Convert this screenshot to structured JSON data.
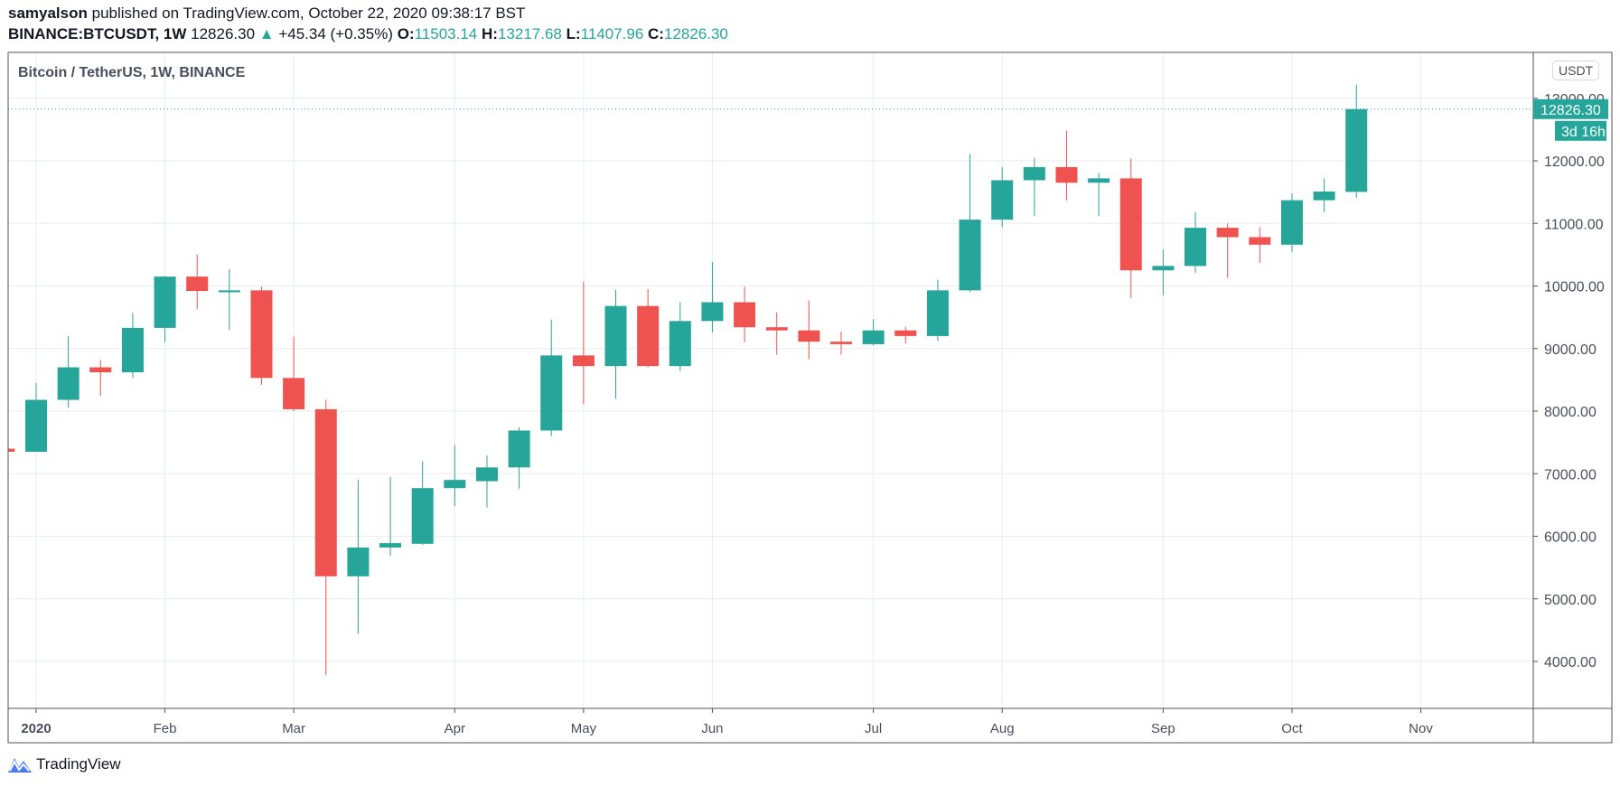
{
  "header": {
    "author": "samyalson",
    "published": "published on TradingView.com, October 22, 2020 09:38:17 BST",
    "symbol": "BINANCE:BTCUSDT, 1W",
    "last": "12826.30",
    "change": "+45.34 (+0.35%)",
    "o_label": "O:",
    "o": "11503.14",
    "h_label": "H:",
    "h": "13217.68",
    "l_label": "L:",
    "l": "11407.96",
    "c_label": "C:",
    "c": "12826.30"
  },
  "chart_title": "Bitcoin / TetherUS, 1W, BINANCE",
  "currency_button": "USDT",
  "last_price_label": "12826.30",
  "countdown_label": "3d 16h",
  "brand": "TradingView",
  "colors": {
    "up": "#26a69a",
    "down": "#ef5350",
    "grid": "#e6eef2",
    "axis": "#50535e"
  },
  "chart_data": {
    "type": "candlestick",
    "title": "Bitcoin / TetherUS, 1W, BINANCE",
    "ylim": [
      3300,
      13500
    ],
    "yticks": [
      "4000.00",
      "5000.00",
      "6000.00",
      "7000.00",
      "8000.00",
      "9000.00",
      "10000.00",
      "11000.00",
      "12000.00",
      "13000.00"
    ],
    "ytick_values": [
      4000,
      5000,
      6000,
      7000,
      8000,
      9000,
      10000,
      11000,
      12000,
      13000
    ],
    "xticks": [
      {
        "label": "2020",
        "week": 0
      },
      {
        "label": "Feb",
        "week": 4
      },
      {
        "label": "Mar",
        "week": 8
      },
      {
        "label": "Apr",
        "week": 13
      },
      {
        "label": "May",
        "week": 17
      },
      {
        "label": "Jun",
        "week": 21
      },
      {
        "label": "Jul",
        "week": 26
      },
      {
        "label": "Aug",
        "week": 30
      },
      {
        "label": "Sep",
        "week": 35
      },
      {
        "label": "Oct",
        "week": 39
      },
      {
        "label": "Nov",
        "week": 43
      }
    ],
    "candles": [
      [
        -1,
        7400,
        7420,
        7340,
        7350
      ],
      [
        0,
        7350,
        8450,
        7350,
        8180
      ],
      [
        1,
        8180,
        9200,
        8050,
        8700
      ],
      [
        2,
        8700,
        8820,
        8240,
        8620
      ],
      [
        3,
        8620,
        9570,
        8530,
        9330
      ],
      [
        4,
        9330,
        10160,
        9100,
        10150
      ],
      [
        5,
        10150,
        10500,
        9630,
        9920
      ],
      [
        6,
        9900,
        10270,
        9300,
        9930
      ],
      [
        7,
        9930,
        9990,
        8420,
        8530
      ],
      [
        8,
        8530,
        9190,
        8000,
        8030
      ],
      [
        9,
        8030,
        8180,
        3780,
        5360
      ],
      [
        10,
        5360,
        6900,
        4440,
        5820
      ],
      [
        11,
        5820,
        6950,
        5690,
        5890
      ],
      [
        12,
        5880,
        7200,
        5860,
        6770
      ],
      [
        13,
        6770,
        7460,
        6480,
        6900
      ],
      [
        14,
        6880,
        7290,
        6460,
        7100
      ],
      [
        15,
        7100,
        7740,
        6760,
        7690
      ],
      [
        16,
        7690,
        9460,
        7600,
        8890
      ],
      [
        17,
        8890,
        10070,
        8110,
        8720
      ],
      [
        18,
        8720,
        9940,
        8200,
        9680
      ],
      [
        19,
        9680,
        9950,
        8700,
        8720
      ],
      [
        20,
        8720,
        9740,
        8640,
        9440
      ],
      [
        21,
        9440,
        10380,
        9260,
        9740
      ],
      [
        22,
        9740,
        9990,
        9100,
        9340
      ],
      [
        23,
        9340,
        9580,
        8900,
        9290
      ],
      [
        24,
        9290,
        9770,
        8830,
        9110
      ],
      [
        25,
        9110,
        9270,
        8900,
        9070
      ],
      [
        26,
        9070,
        9470,
        9050,
        9290
      ],
      [
        27,
        9290,
        9350,
        9080,
        9200
      ],
      [
        28,
        9200,
        10100,
        9120,
        9930
      ],
      [
        29,
        9930,
        12110,
        9900,
        11060
      ],
      [
        30,
        11060,
        11900,
        10940,
        11690
      ],
      [
        31,
        11690,
        12050,
        11120,
        11900
      ],
      [
        32,
        11900,
        12480,
        11370,
        11650
      ],
      [
        33,
        11650,
        11810,
        11120,
        11720
      ],
      [
        34,
        11720,
        12040,
        9810,
        10250
      ],
      [
        35,
        10250,
        10580,
        9850,
        10320
      ],
      [
        36,
        10320,
        11180,
        10210,
        10930
      ],
      [
        37,
        10930,
        11000,
        10130,
        10780
      ],
      [
        38,
        10780,
        10940,
        10370,
        10660
      ],
      [
        39,
        10660,
        11480,
        10540,
        11370
      ],
      [
        40,
        11370,
        11720,
        11180,
        11510
      ],
      [
        41,
        11503.14,
        13217.68,
        11407.96,
        12826.3
      ]
    ],
    "candle_fields": [
      "week",
      "open",
      "high",
      "low",
      "close"
    ],
    "last_price": 12826.3
  }
}
